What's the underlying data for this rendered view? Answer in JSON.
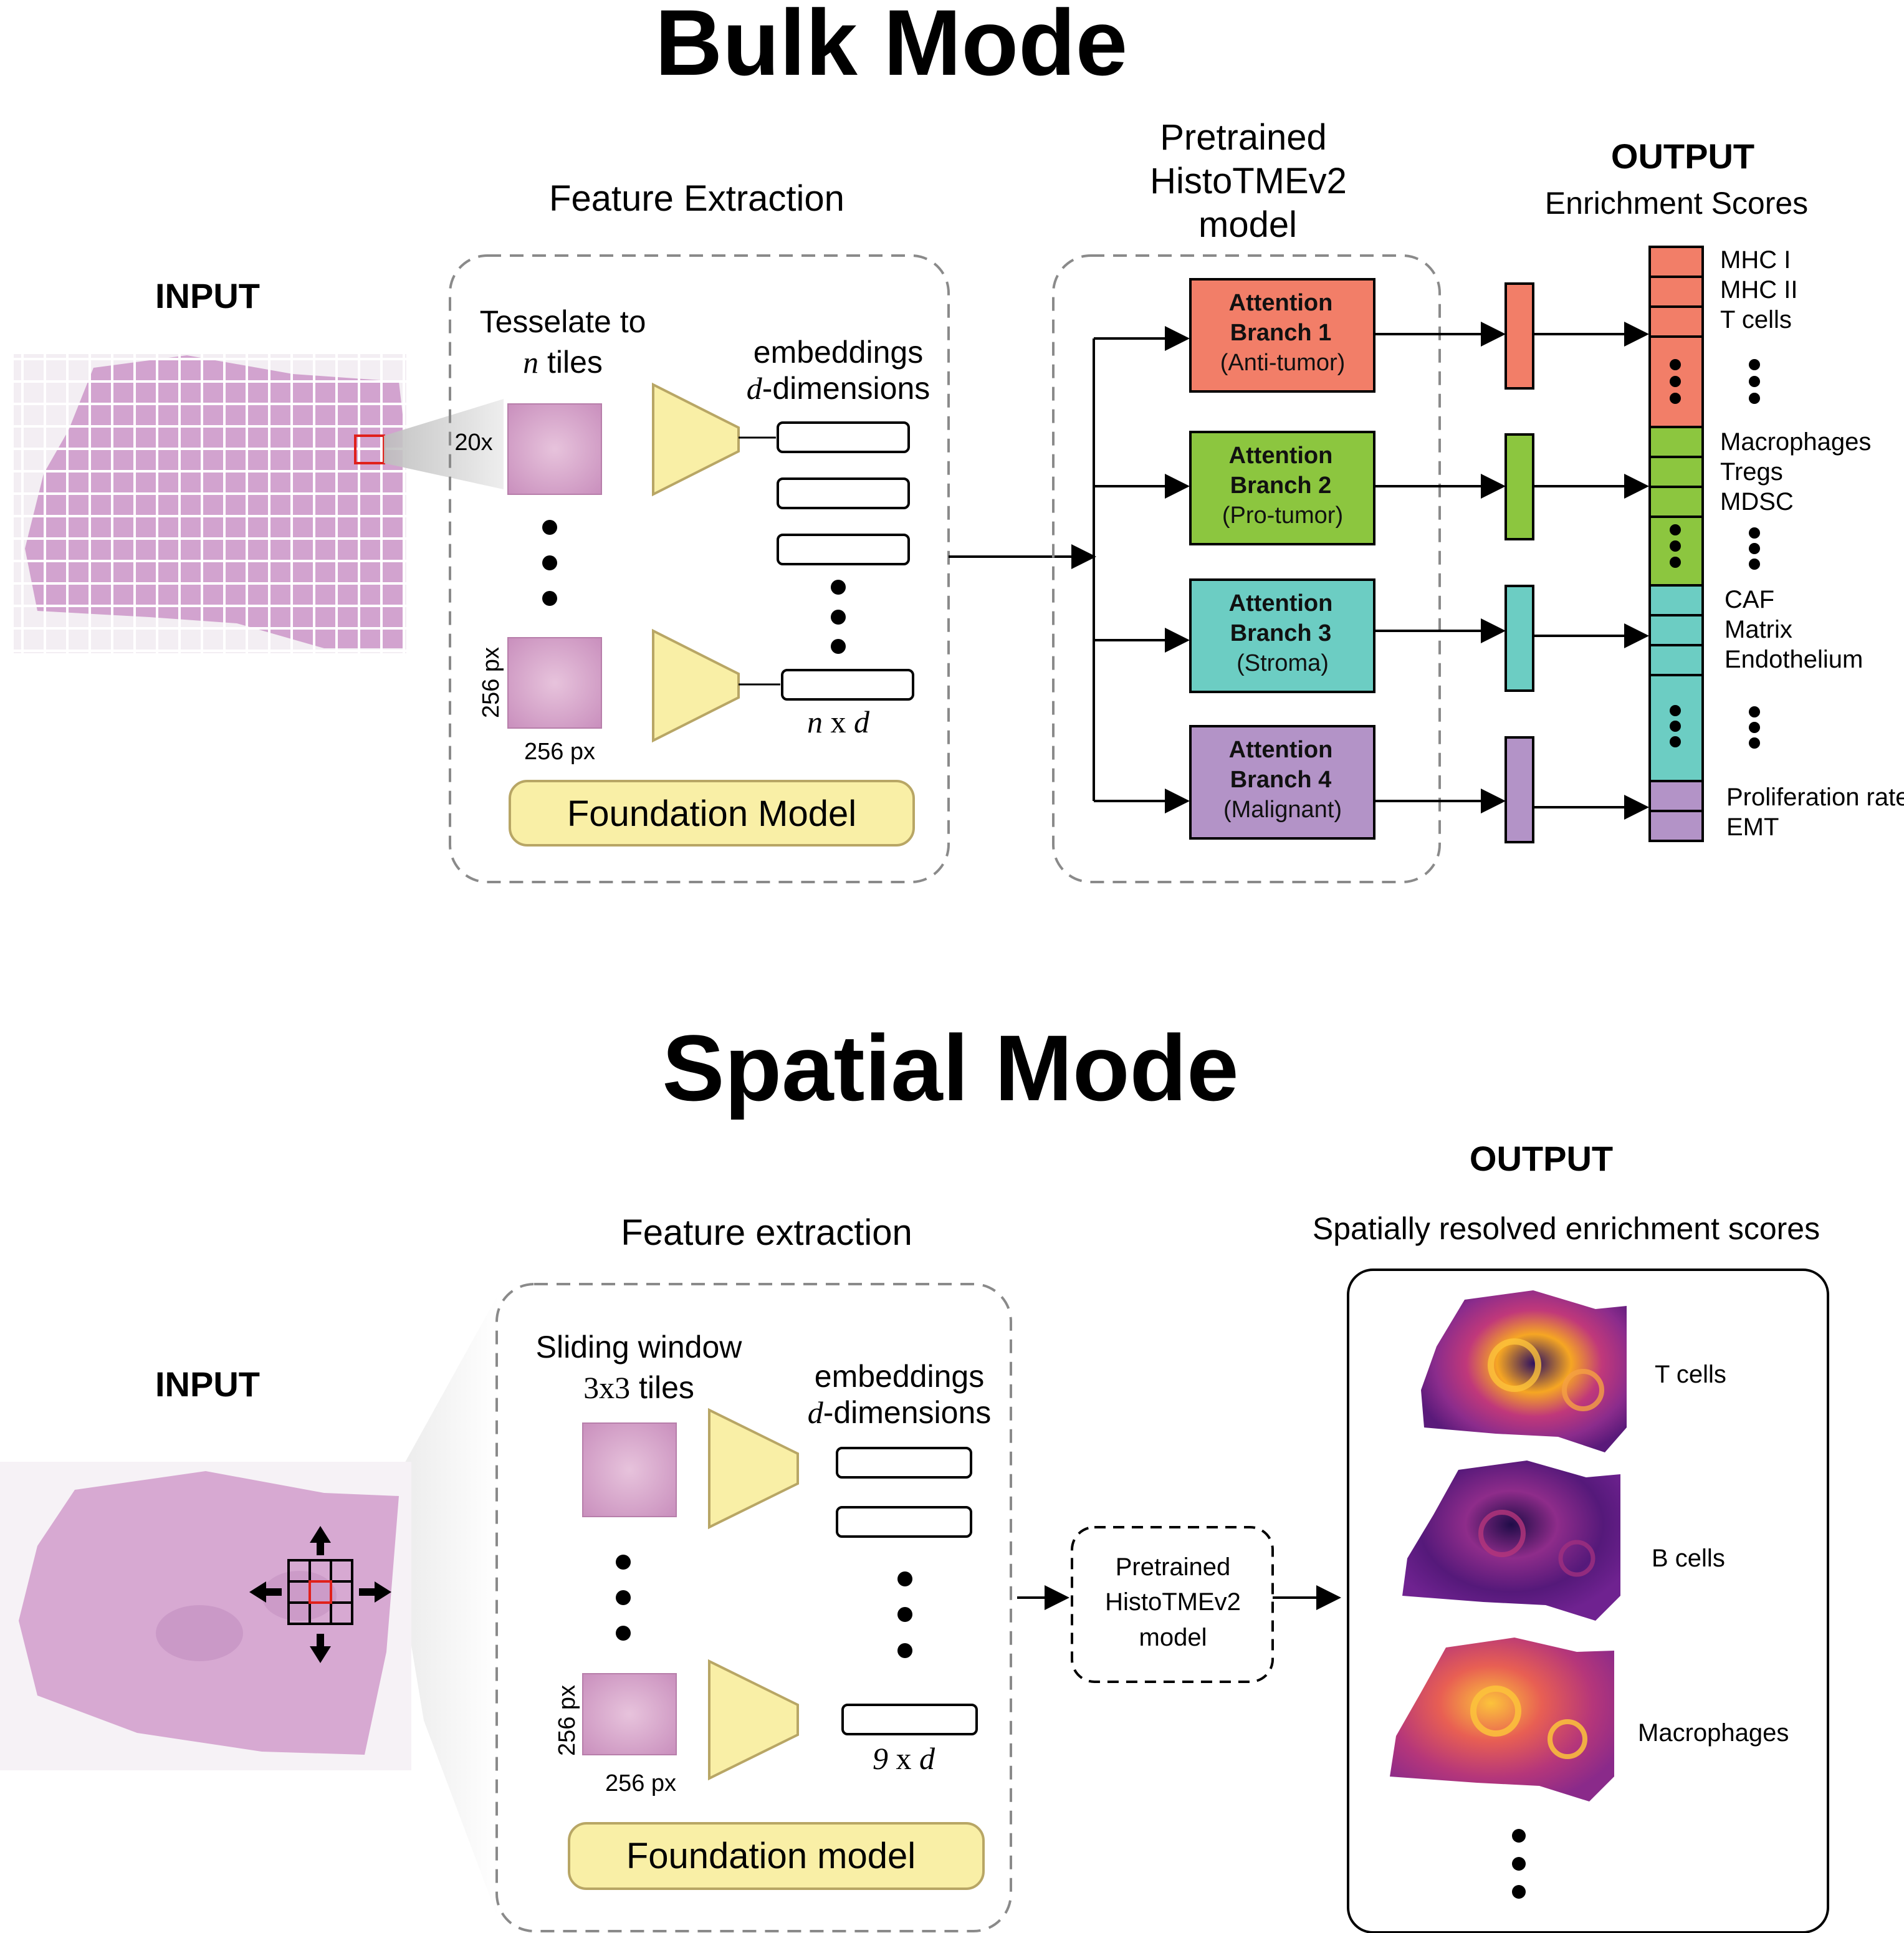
{
  "bulk": {
    "title": "Bulk Mode",
    "input_label": "INPUT",
    "feature_extraction_label": "Feature Extraction",
    "tesselate_line1": "Tesselate to",
    "tesselate_n": "n",
    "tesselate_line2": " tiles",
    "zoom_label": "20x",
    "embeddings_label": "embeddings",
    "embeddings_d": "d",
    "embeddings_dim": "-dimensions",
    "matrix_n": "n",
    "matrix_x": " x ",
    "matrix_d": "d",
    "tile_height": "256 px",
    "tile_width": "256 px",
    "foundation_label": "Foundation Model",
    "model_title_lines": [
      "Pretrained",
      "HistoTMEv2",
      "model"
    ],
    "output_label": "OUTPUT",
    "output_subtitle": "Enrichment Scores",
    "branches": [
      {
        "line1": "Attention",
        "line2": "Branch 1",
        "line3": "(Anti-tumor)",
        "color": "#f27e68"
      },
      {
        "line1": "Attention",
        "line2": "Branch 2",
        "line3": "(Pro-tumor)",
        "color": "#8cc63f"
      },
      {
        "line1": "Attention",
        "line2": "Branch 3",
        "line3": "(Stroma)",
        "color": "#6ccdc3"
      },
      {
        "line1": "Attention",
        "line2": "Branch 4",
        "line3": "(Malignant)",
        "color": "#b393c7"
      }
    ],
    "score_labels": {
      "group1": [
        "MHC I",
        "MHC II",
        "T cells"
      ],
      "group2": [
        "Macrophages",
        "Tregs",
        "MDSC"
      ],
      "group3": [
        "CAF",
        "Matrix",
        "Endothelium"
      ],
      "group4": [
        "Proliferation rate",
        "EMT"
      ]
    }
  },
  "spatial": {
    "title": "Spatial Mode",
    "input_label": "INPUT",
    "feature_extraction_label": "Feature extraction",
    "sliding_line1": "Sliding window",
    "sliding_3x3": "3x3",
    "sliding_line2": " tiles",
    "embeddings_label": "embeddings",
    "embeddings_d": "d",
    "embeddings_dim": "-dimensions",
    "matrix_9": "9",
    "matrix_x": " x ",
    "matrix_d": "d",
    "tile_height": "256 px",
    "tile_width": "256 px",
    "foundation_label": "Foundation model",
    "model_lines": [
      "Pretrained",
      "HistoTMEv2",
      "model"
    ],
    "output_label": "OUTPUT",
    "output_subtitle": "Spatially resolved enrichment scores",
    "maps": [
      "T cells",
      "B cells",
      "Macrophages"
    ]
  },
  "colors": {
    "tissue": "#d7a9d2",
    "foundation_fill": "#f9efa6",
    "foundation_stroke": "#b8a665",
    "tile_red": "#e0201b",
    "heat_dark": "#3b0f70",
    "heat_mid": "#b5367a",
    "heat_bright": "#fcc33b"
  }
}
